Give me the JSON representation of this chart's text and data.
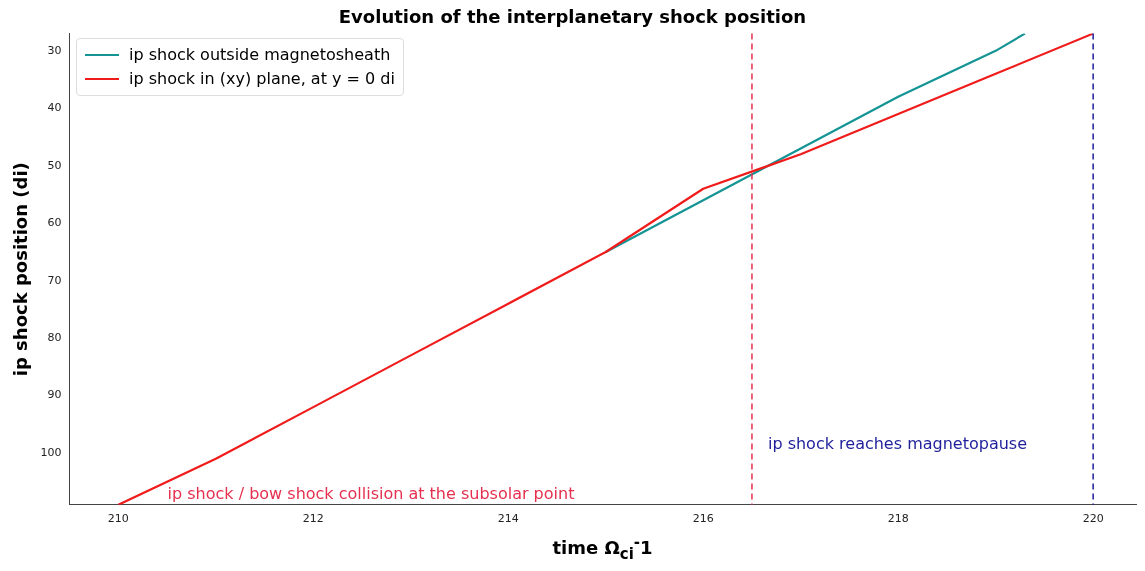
{
  "chart_data": {
    "type": "line",
    "title": "Evolution of the interplanetary shock position",
    "xlabel": "time Ω$_{ci}$$^{-}$1",
    "ylabel": "ip shock position (di)",
    "xlim": [
      209.5,
      220.45
    ],
    "xticks": [
      210,
      212,
      214,
      216,
      218,
      220
    ],
    "ylim": [
      109,
      27
    ],
    "yticks": [
      30,
      40,
      50,
      60,
      70,
      80,
      90,
      100
    ],
    "series": [
      {
        "name": "ip shock outside magnetosheath",
        "color": "#149494",
        "x": [
          215,
          216,
          217,
          218,
          219,
          219.3
        ],
        "values": [
          65,
          56,
          47,
          38,
          30,
          27
        ]
      },
      {
        "name": "ip shock in (xy) plane, at y = 0 di",
        "color": "#f01c1c",
        "x": [
          210,
          211,
          212,
          213,
          214,
          215,
          216,
          217,
          218,
          219,
          220
        ],
        "values": [
          109,
          101,
          92,
          83,
          74,
          65,
          54,
          48,
          41,
          34,
          27
        ]
      }
    ],
    "ref_lines": [
      {
        "axis": "x",
        "value": 216.5,
        "color": "#e5304f",
        "line_style": "dashed"
      },
      {
        "axis": "x",
        "value": 220,
        "color": "#1f1f9c",
        "line_style": "dashed"
      }
    ],
    "annotations": [
      "ip shock / bow shock collision at the subsolar point",
      "ip shock reaches magnetopause"
    ],
    "legend": "top left",
    "grid": false,
    "marker": "none",
    "line_style": "solid"
  }
}
